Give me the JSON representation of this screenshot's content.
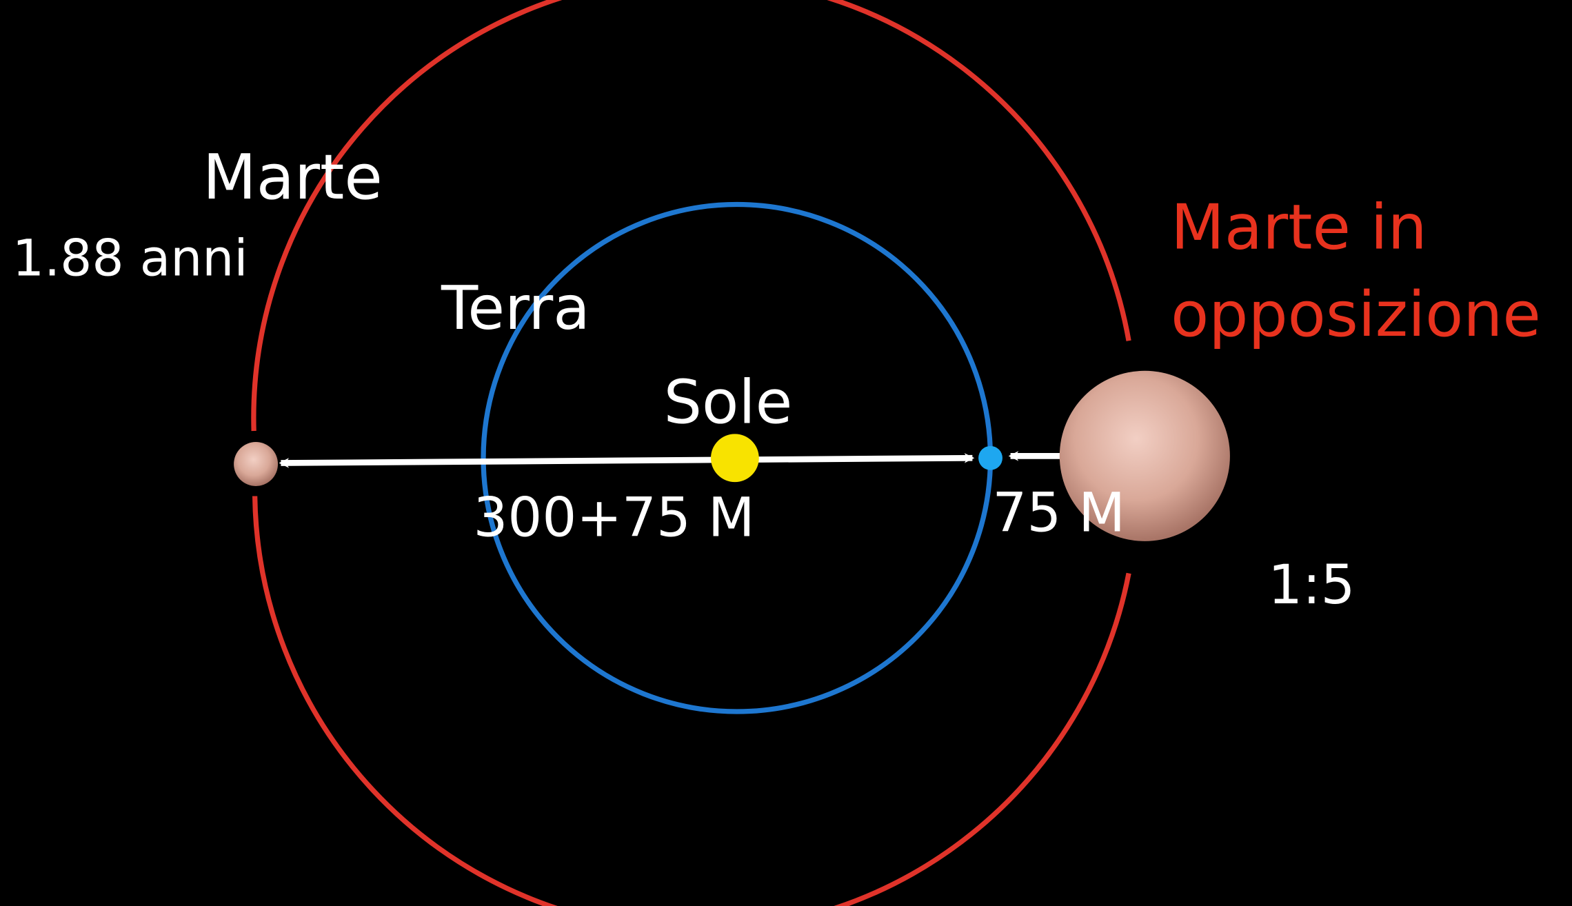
{
  "labels": {
    "mars": "Marte",
    "mars_period": "1.88 anni",
    "earth": "Terra",
    "sun": "Sole",
    "opposition_line1": "Marte in",
    "opposition_line2": "opposizione",
    "distance_far": "300+75 M",
    "distance_near": "75 M",
    "ratio": "1:5"
  }
}
